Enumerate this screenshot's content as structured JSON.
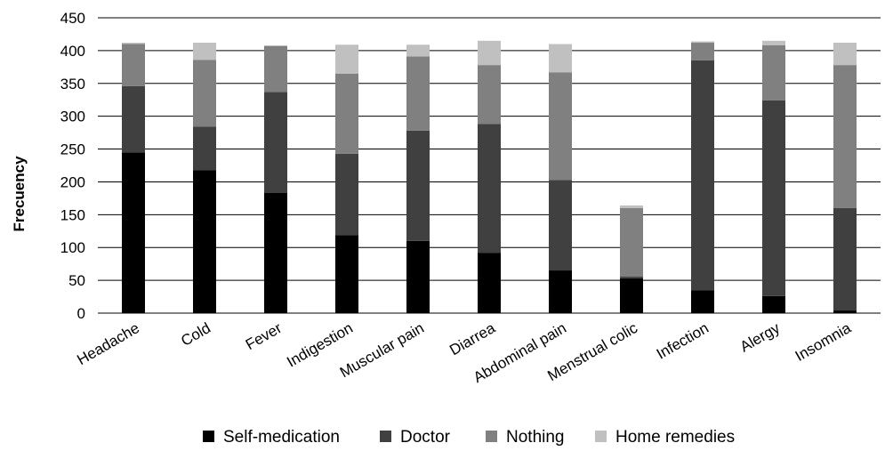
{
  "chart_data": {
    "type": "bar",
    "stacked": true,
    "title": "",
    "xlabel": "",
    "ylabel": "Frecuency",
    "ylim": [
      0,
      450
    ],
    "yticks": [
      0,
      50,
      100,
      150,
      200,
      250,
      300,
      350,
      400,
      450
    ],
    "grid": "horizontal",
    "legend_position": "bottom",
    "categories": [
      "Headache",
      "Cold",
      "Fever",
      "Indigestion",
      "Muscular pain",
      "Diarrea",
      "Abdominal pain",
      "Menstrual colic",
      "Infection",
      "Alergy",
      "Insomnia"
    ],
    "series": [
      {
        "name": "Self-medication",
        "color": "#000000",
        "values": [
          245,
          218,
          183,
          119,
          110,
          92,
          65,
          53,
          35,
          26,
          4
        ]
      },
      {
        "name": "Doctor",
        "color": "#404040",
        "values": [
          101,
          66,
          154,
          124,
          168,
          196,
          138,
          3,
          350,
          298,
          156
        ]
      },
      {
        "name": "Nothing",
        "color": "#808080",
        "values": [
          64,
          102,
          70,
          122,
          113,
          90,
          164,
          104,
          27,
          84,
          218
        ]
      },
      {
        "name": "Home remedies",
        "color": "#c0c0c0",
        "values": [
          2,
          26,
          1,
          44,
          18,
          37,
          43,
          4,
          2,
          7,
          34
        ]
      }
    ]
  }
}
